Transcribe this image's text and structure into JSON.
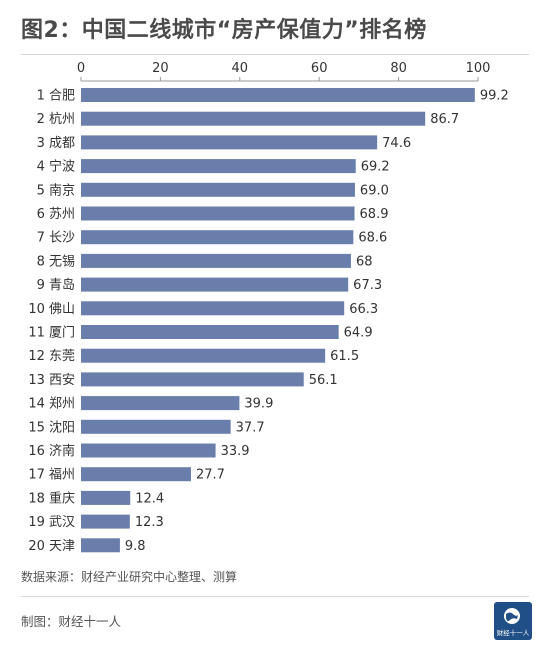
{
  "title": "图2：中国二线城市“房产保值力”排名榜",
  "source": "数据来源：财经产业研究中心整理、测算",
  "credit": "制图：财经十一人",
  "logo_text": "财经十一人",
  "colors": {
    "bar": "#6a7eab",
    "axis": "#999999",
    "text": "#333333"
  },
  "chart_data": {
    "type": "bar",
    "orientation": "horizontal",
    "x_axis_position": "top",
    "xlim": [
      0,
      100
    ],
    "xticks": [
      "0",
      "20",
      "40",
      "60",
      "80",
      "100"
    ],
    "grid": false,
    "categories": [
      "1 合肥",
      "2 杭州",
      "3 成都",
      "4 宁波",
      "5 南京",
      "6 苏州",
      "7 长沙",
      "8 无锡",
      "9 青岛",
      "10 佛山",
      "11 厦门",
      "12 东莞",
      "13 西安",
      "14 郑州",
      "15 沈阳",
      "16 济南",
      "17 福州",
      "18 重庆",
      "19 武汉",
      "20 天津"
    ],
    "values": [
      99.2,
      86.7,
      74.6,
      69.2,
      69.0,
      68.9,
      68.6,
      68,
      67.3,
      66.3,
      64.9,
      61.5,
      56.1,
      39.9,
      37.7,
      33.9,
      27.7,
      12.4,
      12.3,
      9.8
    ],
    "value_labels": [
      "99.2",
      "86.7",
      "74.6",
      "69.2",
      "69.0",
      "68.9",
      "68.6",
      "68",
      "67.3",
      "66.3",
      "64.9",
      "61.5",
      "56.1",
      "39.9",
      "37.7",
      "33.9",
      "27.7",
      "12.4",
      "12.3",
      "9.8"
    ]
  }
}
